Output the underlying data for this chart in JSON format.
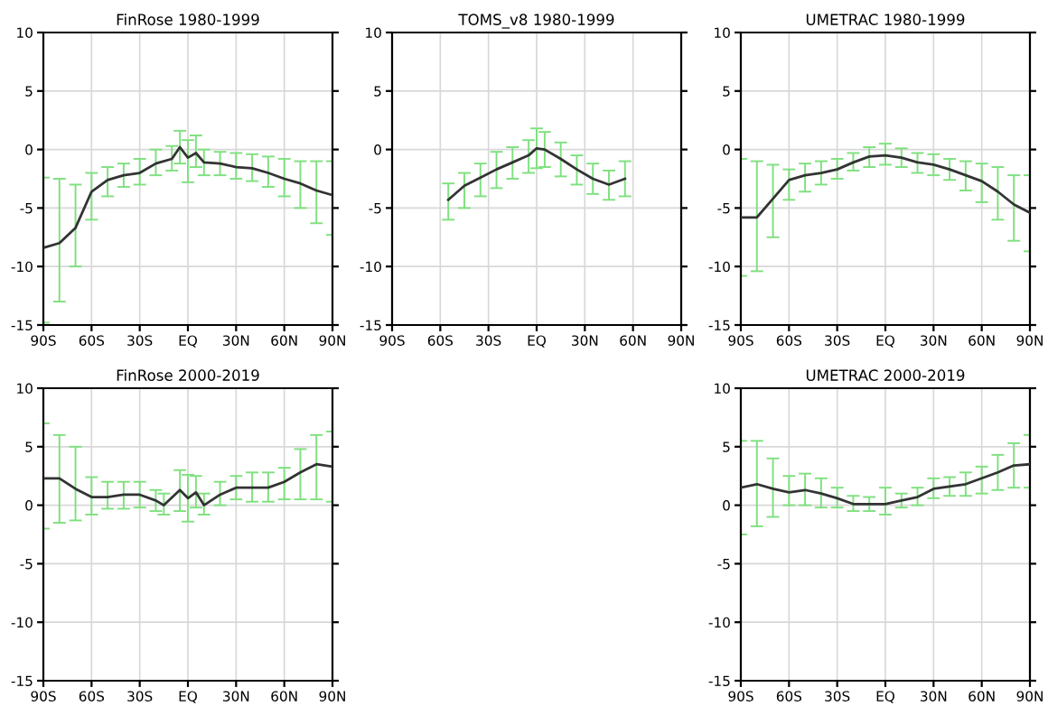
{
  "chart_data": [
    {
      "type": "line",
      "title": "FinRose 1980-1999",
      "xlim": [
        -90,
        90
      ],
      "ylim": [
        -15,
        10
      ],
      "grid": true,
      "marker": "none",
      "xticks": [
        {
          "value": -90,
          "label": "90S"
        },
        {
          "value": -60,
          "label": "60S"
        },
        {
          "value": -30,
          "label": "30S"
        },
        {
          "value": 0,
          "label": "EQ"
        },
        {
          "value": 30,
          "label": "30N"
        },
        {
          "value": 60,
          "label": "60N"
        },
        {
          "value": 90,
          "label": "90N"
        }
      ],
      "yticks": [
        -15,
        -10,
        -5,
        0,
        5,
        10
      ],
      "x": [
        -90,
        -80,
        -70,
        -60,
        -50,
        -40,
        -30,
        -20,
        -10,
        -5,
        0,
        5,
        10,
        20,
        30,
        40,
        50,
        60,
        70,
        80,
        90
      ],
      "series": [
        {
          "color": "#333333",
          "values": [
            -8.4,
            -8.0,
            -6.7,
            -3.6,
            -2.6,
            -2.2,
            -2.0,
            -1.2,
            -0.8,
            0.2,
            -0.7,
            -0.3,
            -1.1,
            -1.2,
            -1.5,
            -1.6,
            -2.0,
            -2.5,
            -2.9,
            -3.5,
            -3.9
          ],
          "errors": [
            [
              -14.8,
              -2.4
            ],
            [
              -13,
              -2.5
            ],
            [
              -10,
              -3
            ],
            [
              -6,
              -2
            ],
            [
              -4,
              -1.5
            ],
            [
              -3.2,
              -1.2
            ],
            [
              -3,
              -0.8
            ],
            [
              -2.2,
              0
            ],
            [
              -1.8,
              0.3
            ],
            [
              -1.2,
              1.6
            ],
            [
              -2.8,
              0.8
            ],
            [
              -1.5,
              1.2
            ],
            [
              -2.2,
              0
            ],
            [
              -2.2,
              -0.2
            ],
            [
              -2.5,
              -0.3
            ],
            [
              -2.7,
              -0.4
            ],
            [
              -3.2,
              -0.6
            ],
            [
              -4,
              -0.8
            ],
            [
              -5,
              -1
            ],
            [
              -6.3,
              -1
            ],
            [
              -7.3,
              -1
            ]
          ]
        }
      ]
    },
    {
      "type": "line",
      "title": "TOMS_v8 1980-1999",
      "xlim": [
        -90,
        90
      ],
      "ylim": [
        -15,
        10
      ],
      "grid": true,
      "marker": "none",
      "xticks": [
        {
          "value": -90,
          "label": "90S"
        },
        {
          "value": -60,
          "label": "60S"
        },
        {
          "value": -30,
          "label": "30S"
        },
        {
          "value": 0,
          "label": "EQ"
        },
        {
          "value": 30,
          "label": "30N"
        },
        {
          "value": 60,
          "label": "60N"
        },
        {
          "value": 90,
          "label": "90N"
        }
      ],
      "yticks": [
        -15,
        -10,
        -5,
        0,
        5,
        10
      ],
      "x": [
        -55,
        -45,
        -35,
        -25,
        -15,
        -5,
        0,
        5,
        15,
        25,
        35,
        45,
        55
      ],
      "series": [
        {
          "color": "#333333",
          "values": [
            -4.3,
            -3.1,
            -2.4,
            -1.7,
            -1.1,
            -0.5,
            0.1,
            0,
            -0.8,
            -1.7,
            -2.5,
            -3.0,
            -2.5
          ],
          "errors": [
            [
              -6,
              -2.9
            ],
            [
              -5,
              -2
            ],
            [
              -4,
              -1.2
            ],
            [
              -3.3,
              -0.2
            ],
            [
              -2.5,
              0.2
            ],
            [
              -2,
              0.8
            ],
            [
              -1.6,
              1.8
            ],
            [
              -1.5,
              1.5
            ],
            [
              -2.3,
              0.6
            ],
            [
              -3,
              -0.5
            ],
            [
              -3.8,
              -1.2
            ],
            [
              -4.3,
              -1.8
            ],
            [
              -4,
              -1
            ]
          ]
        }
      ]
    },
    {
      "type": "line",
      "title": "UMETRAC 1980-1999",
      "xlim": [
        -90,
        90
      ],
      "ylim": [
        -15,
        10
      ],
      "grid": true,
      "marker": "none",
      "xticks": [
        {
          "value": -90,
          "label": "90S"
        },
        {
          "value": -60,
          "label": "60S"
        },
        {
          "value": -30,
          "label": "30S"
        },
        {
          "value": 0,
          "label": "EQ"
        },
        {
          "value": 30,
          "label": "30N"
        },
        {
          "value": 60,
          "label": "60N"
        },
        {
          "value": 90,
          "label": "90N"
        }
      ],
      "yticks": [
        -15,
        -10,
        -5,
        0,
        5,
        10
      ],
      "x": [
        -90,
        -80,
        -70,
        -60,
        -50,
        -40,
        -30,
        -20,
        -10,
        0,
        10,
        20,
        30,
        40,
        50,
        60,
        70,
        80,
        90
      ],
      "series": [
        {
          "color": "#333333",
          "values": [
            -5.8,
            -5.8,
            -4.2,
            -2.6,
            -2.2,
            -2.0,
            -1.7,
            -1.1,
            -0.6,
            -0.5,
            -0.7,
            -1.1,
            -1.3,
            -1.7,
            -2.2,
            -2.7,
            -3.6,
            -4.7,
            -5.4
          ],
          "errors": [
            [
              -10.8,
              -0.8
            ],
            [
              -10.4,
              -1
            ],
            [
              -7.5,
              -1.3
            ],
            [
              -4.3,
              -1.7
            ],
            [
              -3.6,
              -1.2
            ],
            [
              -3,
              -1
            ],
            [
              -2.5,
              -0.8
            ],
            [
              -1.8,
              -0.3
            ],
            [
              -1.5,
              0.2
            ],
            [
              -1.3,
              0.5
            ],
            [
              -1.5,
              0.1
            ],
            [
              -2,
              -0.3
            ],
            [
              -2.2,
              -0.4
            ],
            [
              -2.6,
              -0.8
            ],
            [
              -3.5,
              -1
            ],
            [
              -4.5,
              -1.2
            ],
            [
              -6,
              -1.5
            ],
            [
              -7.8,
              -2.2
            ],
            [
              -8.7,
              -2.2
            ]
          ]
        }
      ]
    },
    {
      "type": "line",
      "title": "FinRose 2000-2019",
      "xlim": [
        -90,
        90
      ],
      "ylim": [
        -15,
        10
      ],
      "grid": true,
      "marker": "none",
      "xticks": [
        {
          "value": -90,
          "label": "90S"
        },
        {
          "value": -60,
          "label": "60S"
        },
        {
          "value": -30,
          "label": "30S"
        },
        {
          "value": 0,
          "label": "EQ"
        },
        {
          "value": 30,
          "label": "30N"
        },
        {
          "value": 60,
          "label": "60N"
        },
        {
          "value": 90,
          "label": "90N"
        }
      ],
      "yticks": [
        -15,
        -10,
        -5,
        0,
        5,
        10
      ],
      "x": [
        -90,
        -80,
        -70,
        -60,
        -50,
        -40,
        -30,
        -20,
        -15,
        -5,
        0,
        5,
        10,
        20,
        30,
        40,
        50,
        60,
        70,
        80,
        90
      ],
      "series": [
        {
          "color": "#333333",
          "values": [
            2.3,
            2.3,
            1.4,
            0.7,
            0.7,
            0.9,
            0.9,
            0.4,
            0,
            1.3,
            0.6,
            1.1,
            0,
            0.9,
            1.5,
            1.5,
            1.5,
            2.0,
            2.8,
            3.5,
            3.3
          ],
          "errors": [
            [
              -2,
              7
            ],
            [
              -1.5,
              6
            ],
            [
              -1.3,
              5
            ],
            [
              -0.8,
              2.4
            ],
            [
              -0.3,
              2
            ],
            [
              -0.3,
              2
            ],
            [
              -0.2,
              2
            ],
            [
              -0.5,
              1.3
            ],
            [
              -0.8,
              1
            ],
            [
              -0.5,
              3
            ],
            [
              -1.4,
              2.6
            ],
            [
              -0.2,
              2.5
            ],
            [
              -0.8,
              1
            ],
            [
              0,
              2
            ],
            [
              0.5,
              2.5
            ],
            [
              0.3,
              2.8
            ],
            [
              0.3,
              2.8
            ],
            [
              0.5,
              3.2
            ],
            [
              0.5,
              4.8
            ],
            [
              0.5,
              6
            ],
            [
              0.3,
              6.3
            ]
          ]
        }
      ]
    },
    {
      "type": "line",
      "title": "UMETRAC 2000-2019",
      "xlim": [
        -90,
        90
      ],
      "ylim": [
        -15,
        10
      ],
      "grid": true,
      "marker": "none",
      "xticks": [
        {
          "value": -90,
          "label": "90S"
        },
        {
          "value": -60,
          "label": "60S"
        },
        {
          "value": -30,
          "label": "30S"
        },
        {
          "value": 0,
          "label": "EQ"
        },
        {
          "value": 30,
          "label": "30N"
        },
        {
          "value": 60,
          "label": "60N"
        },
        {
          "value": 90,
          "label": "90N"
        }
      ],
      "yticks": [
        -15,
        -10,
        -5,
        0,
        5,
        10
      ],
      "x": [
        -90,
        -80,
        -70,
        -60,
        -50,
        -40,
        -30,
        -20,
        -10,
        0,
        10,
        20,
        30,
        40,
        50,
        60,
        70,
        80,
        90
      ],
      "series": [
        {
          "color": "#333333",
          "values": [
            1.5,
            1.8,
            1.4,
            1.1,
            1.3,
            1.0,
            0.6,
            0.1,
            0.1,
            0.1,
            0.4,
            0.7,
            1.4,
            1.6,
            1.8,
            2.3,
            2.8,
            3.4,
            3.5
          ],
          "errors": [
            [
              -2.5,
              5.5
            ],
            [
              -1.8,
              5.5
            ],
            [
              -1,
              4
            ],
            [
              0,
              2.5
            ],
            [
              0,
              2.7
            ],
            [
              -0.2,
              2.3
            ],
            [
              -0.2,
              1.5
            ],
            [
              -0.5,
              0.8
            ],
            [
              -0.5,
              0.7
            ],
            [
              -0.8,
              1.5
            ],
            [
              -0.2,
              1
            ],
            [
              0,
              1.5
            ],
            [
              0.6,
              2.3
            ],
            [
              0.8,
              2.4
            ],
            [
              0.8,
              2.8
            ],
            [
              1,
              3.3
            ],
            [
              1.3,
              4.3
            ],
            [
              1.5,
              5.3
            ],
            [
              1.5,
              6
            ]
          ]
        }
      ]
    }
  ]
}
